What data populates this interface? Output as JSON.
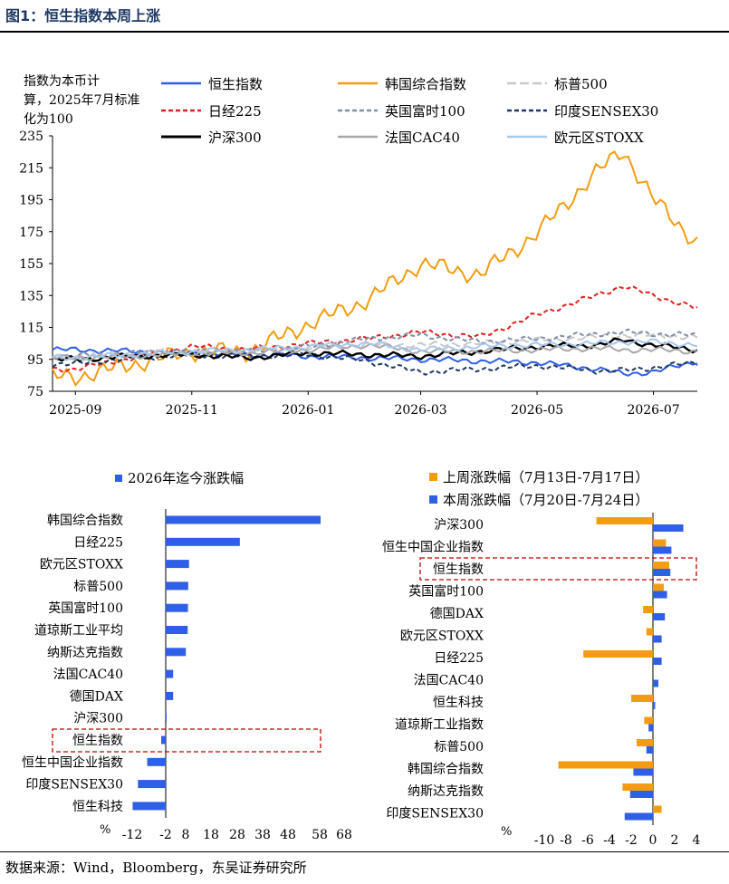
{
  "header": {
    "title": "图1：恒生指数本周上涨"
  },
  "footer": {
    "source": "数据来源：Wind，Bloomberg，东吴证券研究所"
  },
  "chart_data": [
    {
      "type": "line",
      "ylabel": "指数为本币计算，2025年7月标准化为100",
      "ylim": [
        75,
        235
      ],
      "yticks": [
        75,
        95,
        115,
        135,
        155,
        175,
        195,
        215,
        235
      ],
      "xticks": [
        "2025-09",
        "2025-11",
        "2026-01",
        "2026-03",
        "2026-05",
        "2026-07"
      ],
      "x_dates": [
        "2025-09-01",
        "2025-10-01",
        "2025-11-01",
        "2025-12-01",
        "2026-01-01",
        "2026-02-01",
        "2026-03-01",
        "2026-04-01",
        "2026-05-01",
        "2026-06-01",
        "2026-06-15",
        "2026-07-01",
        "2026-07-24"
      ],
      "legend_placement": "top",
      "series": [
        {
          "name": "恒生指数",
          "color": "#2e5fe6",
          "dash": "solid",
          "width": 2,
          "values": [
            101,
            100,
            99,
            98,
            97,
            96,
            95,
            94,
            93,
            89,
            86,
            87,
            94
          ]
        },
        {
          "name": "韩国综合指数",
          "color": "#f39c12",
          "dash": "solid",
          "width": 2,
          "values": [
            84,
            92,
            100,
            100,
            117,
            132,
            155,
            148,
            174,
            212,
            226,
            195,
            168
          ]
        },
        {
          "name": "标普500",
          "color": "#c8c8c8",
          "dash": "longdash",
          "width": 2,
          "values": [
            97,
            99,
            100,
            101,
            102,
            104,
            104,
            105,
            107,
            109,
            110,
            110,
            109
          ]
        },
        {
          "name": "日经225",
          "color": "#e02020",
          "dash": "dash",
          "width": 2,
          "values": [
            89,
            96,
            103,
            101,
            105,
            108,
            112,
            109,
            123,
            135,
            141,
            135,
            127
          ]
        },
        {
          "name": "英国富时100",
          "color": "#8090a8",
          "dash": "dash",
          "width": 2,
          "values": [
            97,
            99,
            100,
            100,
            103,
            108,
            110,
            106,
            108,
            111,
            112,
            111,
            110
          ]
        },
        {
          "name": "印度SENSEX30",
          "color": "#1f3864",
          "dash": "dash",
          "width": 2,
          "values": [
            92,
            96,
            98,
            97,
            98,
            94,
            87,
            89,
            91,
            88,
            88,
            90,
            93
          ]
        },
        {
          "name": "沪深300",
          "color": "#000000",
          "dash": "solid",
          "width": 2.4,
          "values": [
            95,
            97,
            98,
            96,
            99,
            98,
            97,
            100,
            103,
            104,
            107,
            104,
            101
          ]
        },
        {
          "name": "法国CAC40",
          "color": "#a8a8a8",
          "dash": "solid",
          "width": 2,
          "values": [
            96,
            97,
            99,
            99,
            101,
            104,
            100,
            100,
            101,
            102,
            101,
            101,
            100
          ]
        },
        {
          "name": "欧元区STOXX",
          "color": "#a9c8ec",
          "dash": "solid",
          "width": 2,
          "values": [
            96,
            98,
            100,
            101,
            103,
            105,
            101,
            103,
            104,
            105,
            106,
            106,
            104
          ]
        }
      ]
    },
    {
      "type": "bar",
      "orientation": "horizontal",
      "series": [
        {
          "name": "2026年迄今涨跌幅",
          "color": "#2e5fe6"
        }
      ],
      "categories": [
        "韩国综合指数",
        "日经225",
        "欧元区STOXX",
        "标普500",
        "英国富时100",
        "道琼斯工业平均",
        "纳斯达克指数",
        "法国CAC40",
        "德国DAX",
        "沪深300",
        "恒生指数",
        "恒生中国企业指数",
        "印度SENSEX30",
        "恒生科技"
      ],
      "values": [
        58.5,
        28.0,
        8.8,
        8.5,
        8.4,
        8.3,
        7.6,
        2.8,
        2.8,
        0.3,
        -1.7,
        -7.0,
        -10.5,
        -12.5
      ],
      "highlight": "恒生指数",
      "xlim": [
        -12,
        68
      ],
      "xticks": [
        "-12",
        "-2",
        "8",
        "18",
        "28",
        "38",
        "48",
        "58",
        "68"
      ],
      "unit": "%"
    },
    {
      "type": "bar",
      "orientation": "horizontal",
      "categories": [
        "沪深300",
        "恒生中国企业指数",
        "恒生指数",
        "英国富时100",
        "德国DAX",
        "欧元区STOXX",
        "日经225",
        "法国CAC40",
        "恒生科技",
        "道琼斯工业指数",
        "标普500",
        "韩国综合指数",
        "纳斯达克指数",
        "印度SENSEX30"
      ],
      "series": [
        {
          "name": "上周涨跌幅（7月13日-7月17日）",
          "color": "#f39c12",
          "values": [
            -5.2,
            1.2,
            1.5,
            1.0,
            -0.9,
            -0.6,
            -6.4,
            0.0,
            -2.0,
            -0.8,
            -1.5,
            -8.7,
            -2.8,
            0.8
          ]
        },
        {
          "name": "本周涨跌幅（7月20日-7月24日）",
          "color": "#2e5fe6",
          "values": [
            2.8,
            1.7,
            1.6,
            1.3,
            1.1,
            0.8,
            0.8,
            0.5,
            0.2,
            -0.4,
            -0.6,
            -1.8,
            -2.1,
            -2.6
          ]
        }
      ],
      "highlight": "恒生指数",
      "xlim": [
        -10,
        4
      ],
      "xticks": [
        "-10",
        "-8",
        "-6",
        "-4",
        "-2",
        "0",
        "2",
        "4"
      ],
      "unit": "%"
    }
  ]
}
